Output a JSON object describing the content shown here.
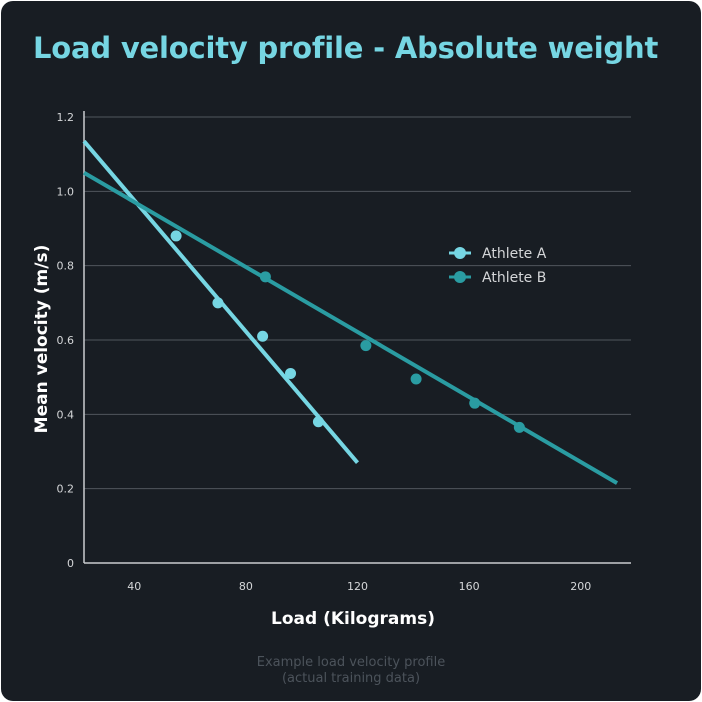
{
  "colors": {
    "background": "#181d23",
    "title": "#76d6e3",
    "athlete_a": "#76d6e3",
    "athlete_b": "#2a9ca2",
    "grid": "#50565d",
    "tick_text": "#d4d6d8",
    "axis_label": "#ffffff",
    "caption": "#4c535b"
  },
  "chart_data": {
    "type": "scatter",
    "title": "Load velocity profile - Absolute weight",
    "xlabel": "Load (Kilograms)",
    "ylabel": "Mean velocity (m/s)",
    "xlim": [
      22,
      218
    ],
    "ylim": [
      0,
      1.2
    ],
    "x_ticks": [
      40,
      80,
      120,
      160,
      200
    ],
    "y_ticks": [
      0,
      0.2,
      0.4,
      0.6,
      0.8,
      1.0,
      1.2
    ],
    "x_tick_labels": [
      "40",
      "80",
      "120",
      "160",
      "200"
    ],
    "y_tick_labels": [
      "0",
      "0.2",
      "0.4",
      "0.6",
      "0.8",
      "1.0",
      "1.2"
    ],
    "grid": "horizontal",
    "legend_position": "right",
    "series": [
      {
        "name": "Athlete A",
        "color": "#76d6e3",
        "points": [
          {
            "x": 55,
            "y": 0.88
          },
          {
            "x": 70,
            "y": 0.7
          },
          {
            "x": 86,
            "y": 0.61
          },
          {
            "x": 96,
            "y": 0.51
          },
          {
            "x": 106,
            "y": 0.38
          }
        ],
        "trendline": [
          [
            22,
            1.135
          ],
          [
            120,
            0.27
          ]
        ]
      },
      {
        "name": "Athlete B",
        "color": "#2a9ca2",
        "points": [
          {
            "x": 87,
            "y": 0.77
          },
          {
            "x": 123,
            "y": 0.585
          },
          {
            "x": 141,
            "y": 0.495
          },
          {
            "x": 162,
            "y": 0.43
          },
          {
            "x": 178,
            "y": 0.365
          }
        ],
        "trendline": [
          [
            22,
            1.05
          ],
          [
            213,
            0.215
          ]
        ]
      }
    ]
  },
  "caption": {
    "line1": "Example load velocity profile",
    "line2": "(actual training data)"
  }
}
